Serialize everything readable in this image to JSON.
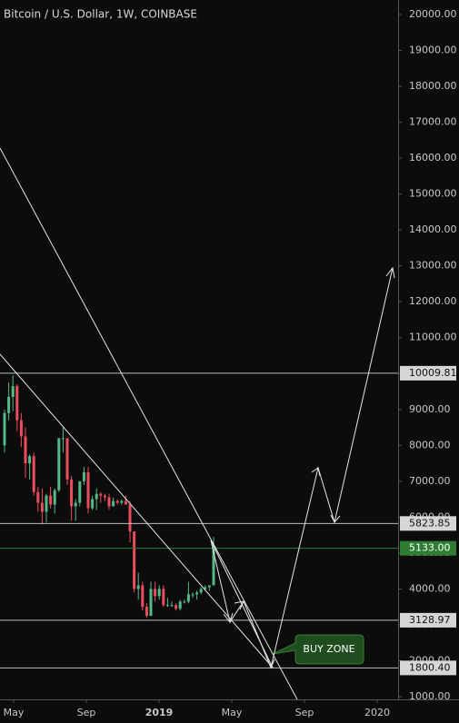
{
  "chart_data": {
    "type": "candlestick",
    "title": "Bitcoin / U.S. Dollar, 1W, COINBASE",
    "x": [
      -0.5,
      -0.27,
      -0.04,
      0.19,
      0.42,
      0.65,
      0.88,
      1.11,
      1.34,
      1.57,
      1.8,
      2.03,
      2.26,
      2.49,
      2.72,
      2.95,
      3.18,
      3.41,
      3.64,
      3.87,
      4.1,
      4.33,
      4.56,
      4.79,
      5.02,
      5.25,
      5.48,
      5.71,
      5.94,
      6.17,
      6.4,
      6.63,
      6.86,
      7.09,
      7.32,
      7.55,
      7.78,
      8.01,
      8.24,
      8.47,
      8.7,
      8.93,
      9.16,
      9.39,
      9.62,
      9.85,
      10.08,
      10.31,
      10.54,
      10.77,
      11.0
    ],
    "open": [
      8000,
      8900,
      9350,
      9650,
      8700,
      8250,
      7500,
      7700,
      6700,
      6400,
      6150,
      6600,
      6350,
      6750,
      8200,
      8200,
      7050,
      6300,
      6400,
      7000,
      7250,
      6250,
      6500,
      6650,
      6600,
      6550,
      6300,
      6450,
      6400,
      6450,
      6350,
      5600,
      4000,
      4100,
      3500,
      3250,
      4000,
      3800,
      4000,
      3550,
      3550,
      3550,
      3450,
      3650,
      3650,
      3850,
      3850,
      3900,
      4000,
      4050,
      4100
    ],
    "high": [
      9000,
      9750,
      9950,
      9700,
      8900,
      8500,
      7750,
      7800,
      6850,
      6800,
      6650,
      6850,
      6800,
      8200,
      8500,
      8200,
      7150,
      6500,
      7000,
      7400,
      7400,
      6600,
      6800,
      6700,
      6650,
      6650,
      6550,
      6500,
      6500,
      6600,
      6450,
      5600,
      4450,
      4200,
      3600,
      4200,
      4200,
      4100,
      4100,
      3750,
      3650,
      3600,
      3700,
      3700,
      4200,
      3900,
      3950,
      4050,
      4100,
      4100,
      5450
    ],
    "low": [
      7800,
      8700,
      8950,
      8400,
      7950,
      7100,
      7050,
      6600,
      6150,
      5800,
      5850,
      6250,
      6100,
      6700,
      7800,
      6900,
      5900,
      5900,
      6300,
      6900,
      6100,
      6200,
      6200,
      6400,
      6450,
      6200,
      6300,
      6350,
      6350,
      6350,
      5300,
      3900,
      3700,
      3400,
      3200,
      3250,
      3650,
      3700,
      3500,
      3500,
      3500,
      3400,
      3400,
      3600,
      3600,
      3750,
      3700,
      3850,
      3950,
      3950,
      4100
    ],
    "close": [
      8900,
      9350,
      9650,
      8700,
      8250,
      7500,
      7700,
      6700,
      6400,
      6150,
      6600,
      6350,
      6750,
      8200,
      8200,
      7050,
      6300,
      6400,
      7000,
      7250,
      6250,
      6500,
      6650,
      6600,
      6550,
      6300,
      6450,
      6400,
      6450,
      6350,
      5600,
      4000,
      4100,
      3500,
      3250,
      4000,
      3800,
      4000,
      3550,
      3550,
      3550,
      3450,
      3650,
      3650,
      3850,
      3850,
      3900,
      4000,
      4050,
      4100,
      5200
    ],
    "up_color": "#53b987",
    "down_color": "#eb4d5c",
    "xlim": [
      -0.75,
      21.15
    ],
    "xticks": [
      {
        "value": 0,
        "label": "May"
      },
      {
        "value": 4,
        "label": "Sep"
      },
      {
        "value": 8,
        "label": "2019"
      },
      {
        "value": 12,
        "label": "May"
      },
      {
        "value": 16,
        "label": "Sep"
      },
      {
        "value": 20,
        "label": "2020"
      }
    ],
    "ylim": [
      1000,
      20000
    ],
    "yticks": [
      {
        "value": 1000,
        "label": "1000.00"
      },
      {
        "value": 2000,
        "label": "2000.00"
      },
      {
        "value": 3000,
        "label": "3000.00"
      },
      {
        "value": 4000,
        "label": "4000.00"
      },
      {
        "value": 5000,
        "label": "5000.00"
      },
      {
        "value": 6000,
        "label": "6000.00"
      },
      {
        "value": 7000,
        "label": "7000.00"
      },
      {
        "value": 8000,
        "label": "8000.00"
      },
      {
        "value": 9000,
        "label": "9000.00"
      },
      {
        "value": 10000,
        "label": "10000.00"
      },
      {
        "value": 11000,
        "label": "11000.00"
      },
      {
        "value": 12000,
        "label": "12000.00"
      },
      {
        "value": 13000,
        "label": "13000.00"
      },
      {
        "value": 14000,
        "label": "14000.00"
      },
      {
        "value": 15000,
        "label": "15000.00"
      },
      {
        "value": 16000,
        "label": "16000.00"
      },
      {
        "value": 17000,
        "label": "17000.00"
      },
      {
        "value": 18000,
        "label": "18000.00"
      },
      {
        "value": 19000,
        "label": "19000.00"
      },
      {
        "value": 20000,
        "label": "20000.00"
      }
    ],
    "levels": [
      {
        "value": 10009.81,
        "label": "10009.81"
      },
      {
        "value": 5823.85,
        "label": "5823.85"
      },
      {
        "value": 3128.97,
        "label": "3128.97"
      },
      {
        "value": 1800.4,
        "label": "1800.40"
      }
    ],
    "level_color": "#bdbdbd",
    "current_price": {
      "value": 5133,
      "label": "5133.00"
    },
    "current_color": "#2e7d32",
    "annotation": "BUY ZONE"
  }
}
